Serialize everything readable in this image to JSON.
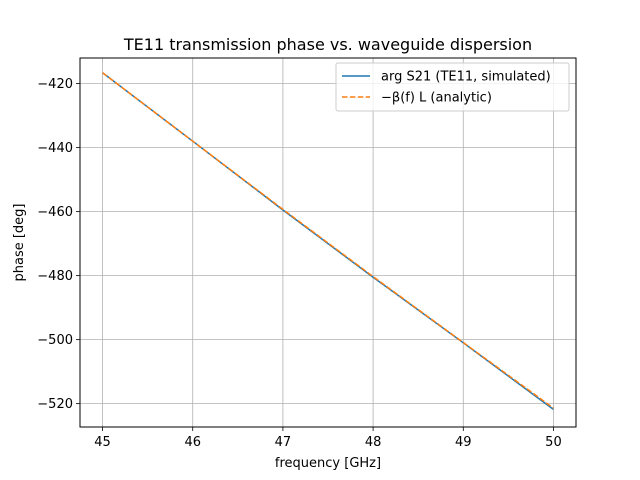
{
  "chart_data": {
    "type": "line",
    "title": "TE11 transmission phase vs. waveguide dispersion",
    "xlabel": "frequency [GHz]",
    "ylabel": "phase [deg]",
    "xlim": [
      44.75,
      50.25
    ],
    "ylim": [
      -527.3,
      -412.0
    ],
    "xticks": [
      45,
      46,
      47,
      48,
      49,
      50
    ],
    "xtick_labels": [
      "45",
      "46",
      "47",
      "48",
      "49",
      "50"
    ],
    "yticks": [
      -420,
      -440,
      -460,
      -480,
      -500,
      -520
    ],
    "ytick_labels": [
      "−420",
      "−440",
      "−460",
      "−480",
      "−500",
      "−520"
    ],
    "grid": true,
    "legend_position": "top-right",
    "series": [
      {
        "name": "arg S21 (TE11, simulated)",
        "color": "#1f77b4",
        "style": "solid",
        "x": [
          45,
          46,
          47,
          48,
          49,
          50
        ],
        "y": [
          -416.6,
          -438.0,
          -459.5,
          -480.5,
          -501.0,
          -521.8
        ]
      },
      {
        "name": "−β(f) L (analytic)",
        "color": "#ff7f0e",
        "style": "dashed",
        "x": [
          45,
          46,
          47,
          48,
          49,
          50
        ],
        "y": [
          -416.6,
          -438.0,
          -459.3,
          -480.3,
          -500.9,
          -521.4
        ]
      }
    ]
  }
}
